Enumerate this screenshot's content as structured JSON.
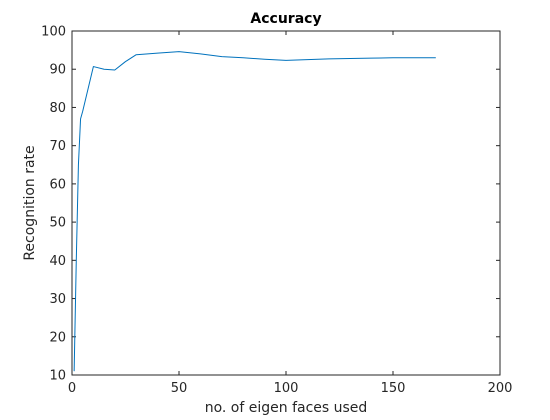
{
  "chart_data": {
    "type": "line",
    "title": "Accuracy",
    "xlabel": "no. of eigen faces used",
    "ylabel": "Recognition rate",
    "xlim": [
      0,
      200
    ],
    "ylim": [
      10,
      100
    ],
    "xticks": [
      0,
      50,
      100,
      150,
      200
    ],
    "yticks": [
      10,
      20,
      30,
      40,
      50,
      60,
      70,
      80,
      90,
      100
    ],
    "grid": false,
    "series": [
      {
        "color": "#0072bd",
        "x": [
          1,
          2,
          3,
          4,
          5,
          10,
          15,
          20,
          25,
          30,
          40,
          50,
          60,
          70,
          80,
          90,
          100,
          110,
          120,
          130,
          140,
          150,
          160,
          170
        ],
        "y": [
          11,
          40,
          65,
          77,
          79,
          90.7,
          90,
          89.8,
          92,
          93.8,
          94.2,
          94.6,
          94,
          93.3,
          93,
          92.6,
          92.3,
          92.5,
          92.7,
          92.8,
          92.9,
          93,
          93,
          93
        ]
      }
    ]
  }
}
